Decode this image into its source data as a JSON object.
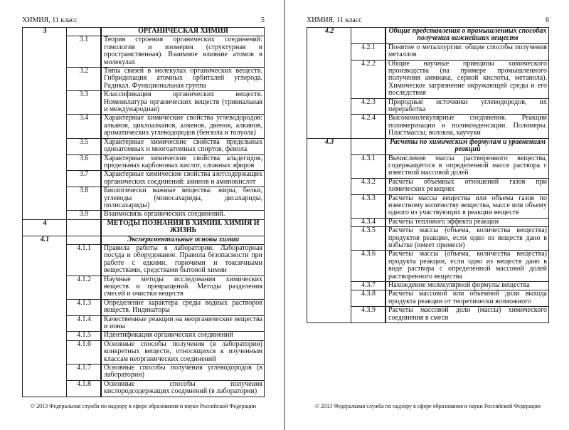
{
  "footer": "© 2013 Федеральная служба по надзору в сфере образования и науки Российской Федерации",
  "pages": [
    {
      "header_title": "ХИМИЯ, 11 класс",
      "page_number": "5",
      "rows": [
        {
          "type": "section",
          "section": "3",
          "code": "",
          "text": "ОРГАНИЧЕСКАЯ ХИМИЯ"
        },
        {
          "type": "sub",
          "section": "",
          "code": "3.1",
          "text": "Теория строения органических соединений: гомология и изомерия (структурная и пространственная). Взаимное влияние атомов в молекулах"
        },
        {
          "type": "sub",
          "section": "",
          "code": "3.2",
          "text": "Типы связей в молекулах органических веществ. Гибридизация атомных орбиталей углерода. Радикал. Функциональная группа"
        },
        {
          "type": "sub",
          "section": "",
          "code": "3.3",
          "text": "Классификация органических веществ. Номенклатура органических веществ (тривиальная и международная)"
        },
        {
          "type": "sub",
          "section": "",
          "code": "3.4",
          "text": "Характерные химические свойства углеводородов: алканов, циклоалканов, алкенов, диенов, алкинов, ароматических углеводородов (бензола и толуола)"
        },
        {
          "type": "sub",
          "section": "",
          "code": "3.5",
          "text": "Характерные химические свойства предельных одноатомных и многоатомных спиртов, фенола"
        },
        {
          "type": "sub",
          "section": "",
          "code": "3.6",
          "text": "Характерные химические свойства альдегидов, предельных карбоновых кислот, сложных эфиров"
        },
        {
          "type": "sub",
          "section": "",
          "code": "3.7",
          "text": "Характерные химические свойства азотсодержащих органических соединений: аминов и аминокислот"
        },
        {
          "type": "sub",
          "section": "",
          "code": "3.8",
          "text": "Биологически важные вещества: жиры, белки, углеводы (моносахариды, дисахариды, полисахариды)"
        },
        {
          "type": "sub",
          "section": "",
          "code": "3.9",
          "text": "Взаимосвязь органических соединений."
        },
        {
          "type": "section",
          "section": "4",
          "code": "",
          "text": "МЕТОДЫ ПОЗНАНИЯ В ХИМИИ. ХИМИЯ И ЖИЗНЬ"
        },
        {
          "type": "section-italic",
          "section": "4.1",
          "code": "",
          "text": "Экспериментальные основы химии"
        },
        {
          "type": "sub",
          "section": "",
          "code": "4.1.1",
          "text": "Правила работы в лаборатории. Лабораторная посуда и оборудование. Правила безопасности при работе с едкими, горючими и токсичными веществами, средствами бытовой химии"
        },
        {
          "type": "sub",
          "section": "",
          "code": "4.1.2",
          "text": "Научные методы исследования химических веществ и превращений. Методы разделения смесей и очистки веществ"
        },
        {
          "type": "sub",
          "section": "",
          "code": "4.1.3",
          "text": "Определение характера среды водных растворов веществ. Индикаторы"
        },
        {
          "type": "sub",
          "section": "",
          "code": "4.1.4",
          "text": "Качественные реакции на неорганические вещества и ионы"
        },
        {
          "type": "sub",
          "section": "",
          "code": "4.1.5",
          "text": "Идентификация органических соединений"
        },
        {
          "type": "sub",
          "section": "",
          "code": "4.1.6",
          "text": "Основные способы получения (в лаборатории) конкретных веществ, относящихся к изученным классам неорганических соединений"
        },
        {
          "type": "sub",
          "section": "",
          "code": "4.1.7",
          "text": "Основные способы получения углеводородов (в лаборатории)"
        },
        {
          "type": "sub",
          "section": "",
          "code": "4.1.8",
          "text": "Основные способы получения кислородсодержащих соединений (в лаборатории)"
        }
      ]
    },
    {
      "header_title": "ХИМИЯ, 11 класс",
      "page_number": "6",
      "rows": [
        {
          "type": "section-italic",
          "section": "4.2",
          "code": "",
          "text": "Общие представления о промышленных способах получения важнейших веществ"
        },
        {
          "type": "sub",
          "section": "",
          "code": "4.2.1",
          "text": "Понятие о металлургии: общие способы получения металлов"
        },
        {
          "type": "sub",
          "section": "",
          "code": "4.2.2",
          "text": "Общие научные принципы химического производства (на примере промышленного получения аммиака, серной кислоты, метанола). Химическое загрязнение окружающей среды и его последствия"
        },
        {
          "type": "sub",
          "section": "",
          "code": "4.2.3",
          "text": "Природные источники углеводородов, их переработка"
        },
        {
          "type": "sub",
          "section": "",
          "code": "4.2.4",
          "text": "Высокомолекулярные соединения. Реакции полимеризации и поликонденсации. Полимеры. Пластмассы, волокна, каучуки"
        },
        {
          "type": "section-italic",
          "section": "4.3",
          "code": "",
          "text": "Расчеты по химическим формулам и уравнениям реакций"
        },
        {
          "type": "sub",
          "section": "",
          "code": "4.3.1",
          "text": "Вычисление массы растворенного вещества, содержащегося в определенной массе раствора с известной массовой долей"
        },
        {
          "type": "sub",
          "section": "",
          "code": "4.3.2",
          "text": "Расчеты объемных отношений газов при химических реакциях"
        },
        {
          "type": "sub",
          "section": "",
          "code": "4.3.3",
          "text": "Расчеты массы вещества или объема газов по известному количеству вещества, массе или объему одного из участвующих в реакции веществ"
        },
        {
          "type": "sub",
          "section": "",
          "code": "4.3.4",
          "text": "Расчеты теплового эффекта реакции"
        },
        {
          "type": "sub",
          "section": "",
          "code": "4.3.5",
          "text": "Расчеты массы (объема, количества вещества) продуктов реакции, если одно из веществ дано в избытке (имеет примеси)"
        },
        {
          "type": "sub",
          "section": "",
          "code": "4.3.6",
          "text": "Расчеты массы (объема, количества вещества) продукта реакции, если одно из веществ дано в виде раствора с определенной массовой долей растворенного вещества"
        },
        {
          "type": "sub",
          "section": "",
          "code": "4.3.7",
          "text": "Нахождение молекулярной формулы вещества"
        },
        {
          "type": "sub",
          "section": "",
          "code": "4.3.8",
          "text": "Расчеты массовой или объемной доли выхода продукта реакции от теоретически возможного"
        },
        {
          "type": "sub",
          "section": "",
          "code": "4.3.9",
          "text": "Расчеты массовой доли (массы) химического соединения в смеси"
        }
      ]
    }
  ]
}
